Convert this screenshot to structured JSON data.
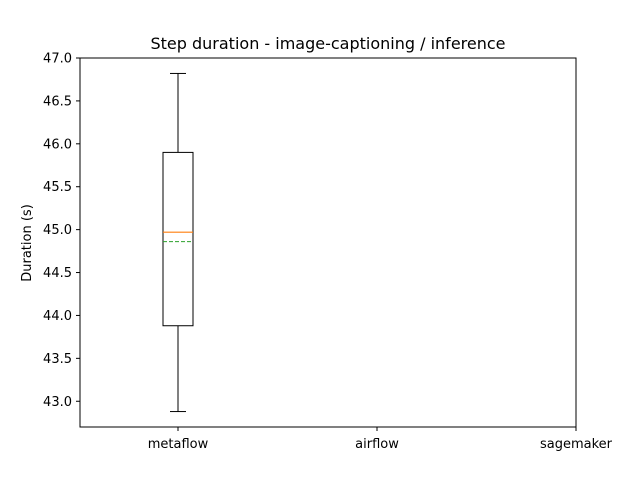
{
  "chart_data": {
    "type": "box",
    "title": "Step duration - image-captioning / inference",
    "xlabel": "",
    "ylabel": "Duration (s)",
    "categories": [
      "metaflow",
      "airflow",
      "sagemaker"
    ],
    "ylim": [
      42.7,
      47.0
    ],
    "yticks": [
      43.0,
      43.5,
      44.0,
      44.5,
      45.0,
      45.5,
      46.0,
      46.5,
      47.0
    ],
    "ytick_labels": [
      "43.0",
      "43.5",
      "44.0",
      "44.5",
      "45.0",
      "45.5",
      "46.0",
      "46.5",
      "47.0"
    ],
    "grid": false,
    "boxes": [
      {
        "category": "metaflow",
        "whisker_low": 42.88,
        "q1": 43.88,
        "median": 44.97,
        "mean": 44.86,
        "q3": 45.9,
        "whisker_high": 46.82
      },
      {
        "category": "airflow",
        "empty": true
      },
      {
        "category": "sagemaker",
        "empty": true
      }
    ],
    "colors": {
      "box": "#000000",
      "median": "#ff7f0e",
      "mean": "#2ca02c"
    }
  }
}
